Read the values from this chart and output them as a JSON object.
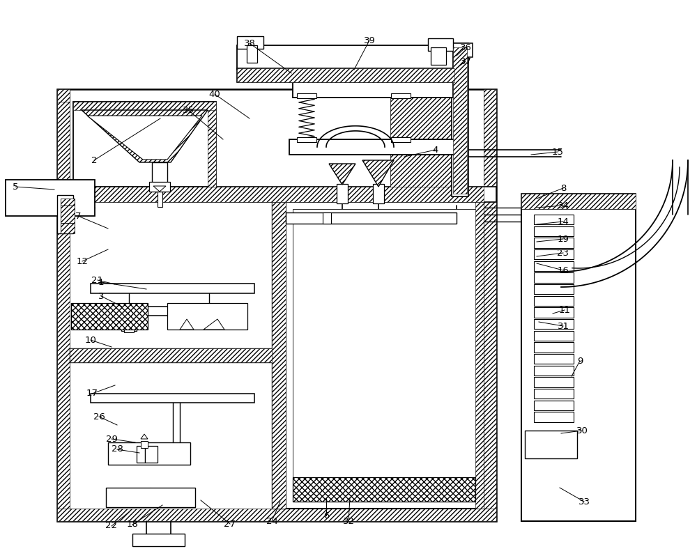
{
  "bg": "#ffffff",
  "lc": "#000000",
  "fig_w": 10.0,
  "fig_h": 7.88,
  "dpi": 100,
  "labels": [
    [
      "1",
      145,
      405,
      210,
      415
    ],
    [
      "2",
      135,
      230,
      230,
      170
    ],
    [
      "3",
      145,
      425,
      175,
      440
    ],
    [
      "4",
      625,
      215,
      580,
      225
    ],
    [
      "5",
      22,
      268,
      78,
      272
    ],
    [
      "6",
      468,
      740,
      468,
      715
    ],
    [
      "7",
      112,
      310,
      155,
      328
    ],
    [
      "8",
      808,
      270,
      770,
      285
    ],
    [
      "9",
      832,
      518,
      820,
      540
    ],
    [
      "10",
      130,
      488,
      160,
      498
    ],
    [
      "11",
      810,
      445,
      793,
      450
    ],
    [
      "12",
      118,
      375,
      155,
      358
    ],
    [
      "14",
      808,
      318,
      770,
      322
    ],
    [
      "15",
      800,
      218,
      762,
      222
    ],
    [
      "16",
      808,
      388,
      770,
      378
    ],
    [
      "17",
      132,
      565,
      165,
      553
    ],
    [
      "18",
      190,
      753,
      233,
      725
    ],
    [
      "19",
      808,
      343,
      770,
      347
    ],
    [
      "21",
      140,
      402,
      165,
      408
    ],
    [
      "22",
      160,
      755,
      185,
      735
    ],
    [
      "23",
      808,
      363,
      770,
      368
    ],
    [
      "24",
      390,
      748,
      402,
      720
    ],
    [
      "26",
      142,
      598,
      168,
      610
    ],
    [
      "27",
      330,
      752,
      288,
      718
    ],
    [
      "28",
      168,
      645,
      200,
      650
    ],
    [
      "29",
      160,
      630,
      194,
      635
    ],
    [
      "30",
      835,
      618,
      805,
      622
    ],
    [
      "31",
      808,
      468,
      773,
      462
    ],
    [
      "32",
      500,
      748,
      502,
      715
    ],
    [
      "33",
      838,
      720,
      803,
      700
    ],
    [
      "34",
      808,
      295,
      770,
      298
    ],
    [
      "35",
      270,
      158,
      320,
      200
    ],
    [
      "36",
      668,
      68,
      655,
      80
    ],
    [
      "37",
      668,
      88,
      655,
      98
    ],
    [
      "38",
      358,
      62,
      418,
      105
    ],
    [
      "39",
      530,
      58,
      508,
      100
    ],
    [
      "40",
      308,
      135,
      358,
      170
    ]
  ]
}
